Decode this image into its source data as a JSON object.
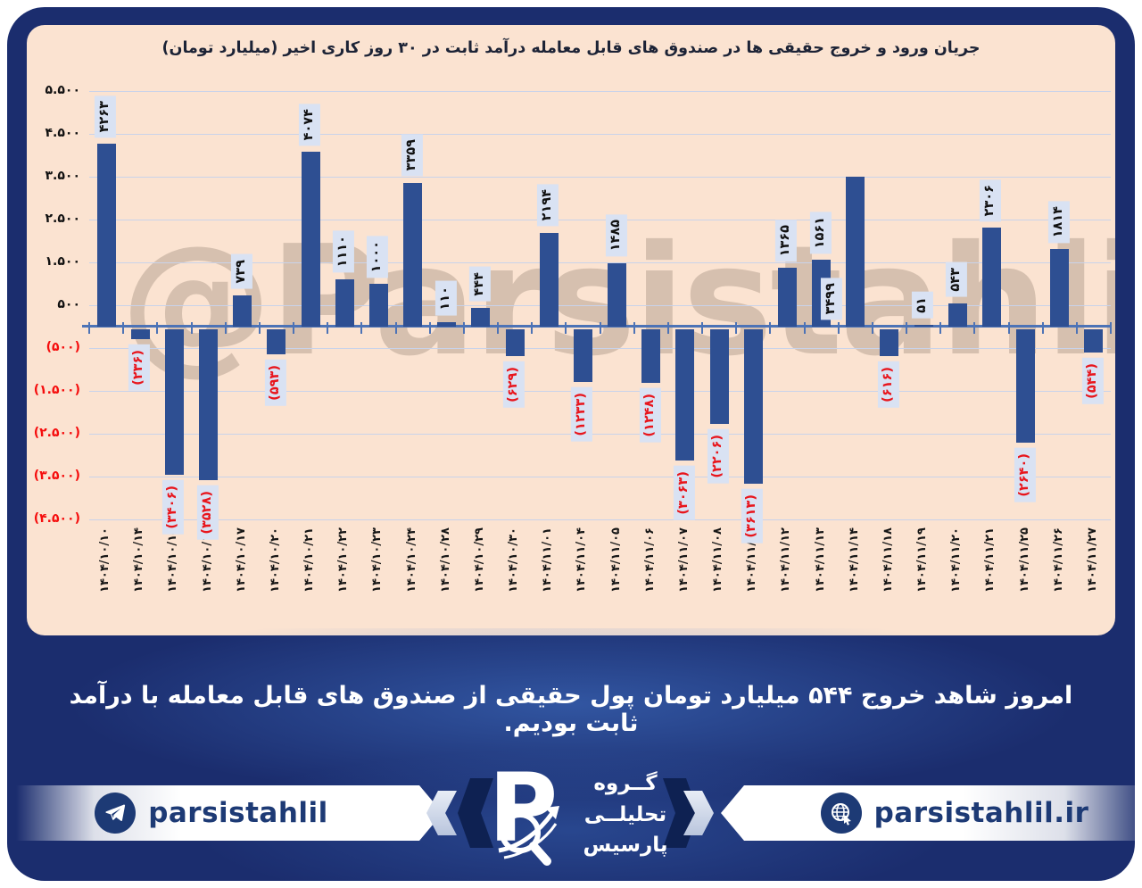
{
  "watermark": "@Parsistahlil",
  "chart_data": {
    "type": "bar",
    "title": "جریان ورود و خروج حقیقی ها در صندوق های قابل معامله درآمد ثابت در ۳۰ روز کاری اخیر (میلیارد تومان)",
    "unit": "میلیارد تومان",
    "ylim": [
      -4500,
      5500
    ],
    "grid": true,
    "legend": "none",
    "bar_color": "#2e4f92",
    "positive_value_color": "#111111",
    "negative_value_color": "#e8151c",
    "categories": [
      "۱۴۰۴/۱۰/۱۰",
      "۱۴۰۴/۱۰/۱۴",
      "۱۴۰۴/۱۰/۱۵",
      "۱۴۰۴/۱۰/۱۶",
      "۱۴۰۴/۱۰/۱۷",
      "۱۴۰۴/۱۰/۲۰",
      "۱۴۰۴/۱۰/۲۱",
      "۱۴۰۴/۱۰/۲۲",
      "۱۴۰۴/۱۰/۲۳",
      "۱۴۰۴/۱۰/۲۴",
      "۱۴۰۴/۱۰/۲۸",
      "۱۴۰۴/۱۰/۲۹",
      "۱۴۰۴/۱۰/۳۰",
      "۱۴۰۴/۱۱/۰۱",
      "۱۴۰۴/۱۱/۰۴",
      "۱۴۰۴/۱۱/۰۵",
      "۱۴۰۴/۱۱/۰۶",
      "۱۴۰۴/۱۱/۰۷",
      "۱۴۰۴/۱۱/۰۸",
      "۱۴۰۴/۱۱/۱۱",
      "۱۴۰۴/۱۱/۱۲",
      "۱۴۰۴/۱۱/۱۳",
      "۱۴۰۴/۱۱/۱۴",
      "۱۴۰۴/۱۱/۱۸",
      "۱۴۰۴/۱۱/۱۹",
      "۱۴۰۴/۱۱/۲۰",
      "۱۴۰۴/۱۱/۲۱",
      "۱۴۰۴/۱۱/۲۵",
      "۱۴۰۴/۱۱/۲۶",
      "۱۴۰۴/۱۱/۲۷"
    ],
    "values": [
      4263,
      -236,
      -3406,
      -3528,
      739,
      -593,
      4074,
      1110,
      1000,
      3359,
      110,
      444,
      -629,
      2194,
      -1233,
      1485,
      -1248,
      -3063,
      -2206,
      -3613,
      1365,
      1561,
      3499,
      -616,
      51,
      543,
      2306,
      -2640,
      1814,
      -544
    ],
    "value_labels": [
      "۴۲۶۳",
      "(۲۳۶)",
      "(۳۴۰۶)",
      "(۳۵۲۸)",
      "۷۳۹",
      "(۵۹۳)",
      "۴۰۷۴",
      "۱۱۱۰",
      "۱۰۰۰",
      "۳۳۵۹",
      "۱۱۰",
      "۴۴۴",
      "(۶۲۹)",
      "۲۱۹۴",
      "(۱۲۳۳)",
      "۱۴۸۵",
      "(۱۲۴۸)",
      "(۳۰۶۳)",
      "(۲۲۰۶)",
      "(۳۶۱۳)",
      "۱۳۶۵",
      "۱۵۶۱",
      "۳۴۹۹",
      "(۶۱۶)",
      "۵۱",
      "۵۴۳",
      "۲۳۰۶",
      "(۲۶۴۰)",
      "۱۸۱۴",
      "(۵۴۴)"
    ],
    "y_ticks": [
      {
        "value": 5500,
        "label": "۵.۵۰۰"
      },
      {
        "value": 4500,
        "label": "۴.۵۰۰"
      },
      {
        "value": 3500,
        "label": "۳.۵۰۰"
      },
      {
        "value": 2500,
        "label": "۲.۵۰۰"
      },
      {
        "value": 1500,
        "label": "۱.۵۰۰"
      },
      {
        "value": 500,
        "label": "۵۰۰"
      },
      {
        "value": -500,
        "label": "(۵۰۰)"
      },
      {
        "value": -1500,
        "label": "(۱.۵۰۰)"
      },
      {
        "value": -2500,
        "label": "(۲.۵۰۰)"
      },
      {
        "value": -3500,
        "label": "(۳.۵۰۰)"
      },
      {
        "value": -4500,
        "label": "(۴.۵۰۰)"
      }
    ]
  },
  "message": {
    "text": "امروز شاهد خروج ۵۴۴ میلیارد تومان پول حقیقی از صندوق های قابل معامله با درآمد ثابت بودیم."
  },
  "footer": {
    "telegram_handle": "parsistahlil",
    "website": "parsistahlil.ir",
    "logo_lines": [
      "گــروه",
      "تحلیلــی",
      "پارسیس"
    ]
  },
  "colors": {
    "panel_navy": "#1b2d6e",
    "chart_background": "#fbe3d1",
    "bar_blue": "#2e4f92",
    "value_box": "#d9e2f3",
    "negative_red": "#e8151c",
    "axis_blue": "#4d73b6"
  }
}
